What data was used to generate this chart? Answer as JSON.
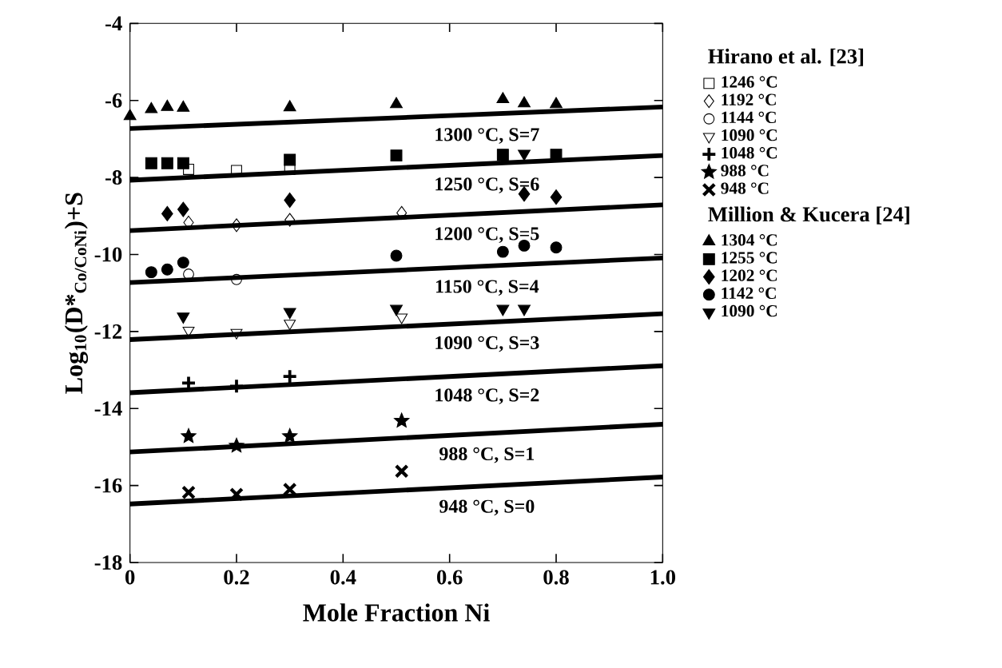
{
  "chart_data": {
    "type": "scatter",
    "xlabel": "Mole Fraction Ni",
    "ylabel": "Log$_{10}$(D*$_{Co/CoNi}$)+S",
    "xlim": [
      0,
      1
    ],
    "ylim": [
      -18,
      -4
    ],
    "xticks": [
      0,
      0.2,
      0.4,
      0.6,
      0.8,
      {
        "value": 1,
        "label": "1.0"
      }
    ],
    "yticks": [
      -18,
      -16,
      -14,
      -12,
      -10,
      -8,
      -6,
      -4
    ],
    "legend": "right",
    "annotations": [
      "Hirano et al. [23]",
      "Million & Kucera [24]",
      "1300 °C, S=7",
      "1250 °C, S=6",
      "1200 °C, S=5",
      "1150 °C, S=4",
      "1090 °C, S=3",
      "1048 °C, S=2",
      "988 °C, S=1",
      "948 °C, S=0"
    ],
    "series": [
      {
        "type": "line",
        "color": "#000000",
        "marker": "none",
        "x": [
          0,
          1
        ],
        "values": [
          -6.73,
          -6.17
        ]
      },
      {
        "type": "line",
        "color": "#000000",
        "marker": "none",
        "x": [
          0,
          1
        ],
        "values": [
          -8.07,
          -7.43
        ]
      },
      {
        "type": "line",
        "color": "#000000",
        "marker": "none",
        "x": [
          0,
          1
        ],
        "values": [
          -9.38,
          -8.71
        ]
      },
      {
        "type": "line",
        "color": "#000000",
        "marker": "none",
        "x": [
          0,
          1
        ],
        "values": [
          -10.73,
          -10.09
        ]
      },
      {
        "type": "line",
        "color": "#000000",
        "marker": "none",
        "x": [
          0,
          1
        ],
        "values": [
          -12.21,
          -11.54
        ]
      },
      {
        "type": "line",
        "color": "#000000",
        "marker": "none",
        "x": [
          0,
          1
        ],
        "values": [
          -13.59,
          -12.89
        ]
      },
      {
        "type": "line",
        "color": "#000000",
        "marker": "none",
        "x": [
          0,
          1
        ],
        "values": [
          -15.13,
          -14.41
        ]
      },
      {
        "type": "line",
        "color": "#000000",
        "marker": "none",
        "x": [
          0,
          1
        ],
        "values": [
          -16.48,
          -15.78
        ]
      },
      {
        "name": "1246 °C",
        "color": "#000000",
        "marker": "square-open",
        "x": [
          0.11,
          0.2,
          0.3
        ],
        "values": [
          -7.79,
          -7.82,
          -7.79
        ]
      },
      {
        "name": "1192 °C",
        "color": "#000000",
        "marker": "diamond-open",
        "x": [
          0.11,
          0.2,
          0.3,
          0.51
        ],
        "values": [
          -9.17,
          -9.24,
          -9.1,
          -8.92
        ]
      },
      {
        "name": "1144 °C",
        "color": "#000000",
        "marker": "circle-open",
        "x": [
          0.11,
          0.2
        ],
        "values": [
          -10.51,
          -10.65
        ]
      },
      {
        "name": "1090 °C",
        "color": "#000000",
        "marker": "triangle-down-open",
        "x": [
          0.11,
          0.2,
          0.3,
          0.51
        ],
        "values": [
          -11.97,
          -12.03,
          -11.79,
          -11.63
        ]
      },
      {
        "name": "1048 °C",
        "color": "#000000",
        "marker": "plus",
        "x": [
          0.11,
          0.2,
          0.3
        ],
        "values": [
          -13.34,
          -13.42,
          -13.17
        ]
      },
      {
        "name": "988 °C",
        "color": "#000000",
        "marker": "star",
        "x": [
          0.11,
          0.2,
          0.3,
          0.51
        ],
        "values": [
          -14.72,
          -14.97,
          -14.72,
          -14.32
        ]
      },
      {
        "name": "948 °C",
        "color": "#000000",
        "marker": "cross",
        "x": [
          0.11,
          0.2,
          0.3,
          0.51
        ],
        "values": [
          -16.18,
          -16.23,
          -16.1,
          -15.63
        ]
      },
      {
        "name": "1304 °C",
        "color": "#000000",
        "marker": "triangle",
        "x": [
          0.0,
          0.04,
          0.07,
          0.1,
          0.3,
          0.5,
          0.7,
          0.74,
          0.8
        ],
        "values": [
          -6.41,
          -6.23,
          -6.17,
          -6.19,
          -6.18,
          -6.1,
          -5.97,
          -6.08,
          -6.1
        ]
      },
      {
        "name": "1255 °C",
        "color": "#000000",
        "marker": "square",
        "x": [
          0.04,
          0.07,
          0.1,
          0.3,
          0.5,
          0.7,
          0.8
        ],
        "values": [
          -7.63,
          -7.63,
          -7.63,
          -7.54,
          -7.43,
          -7.41,
          -7.41
        ]
      },
      {
        "name": "1202 °C",
        "color": "#000000",
        "marker": "diamond",
        "x": [
          0.07,
          0.1,
          0.3,
          0.74,
          0.8
        ],
        "values": [
          -8.94,
          -8.83,
          -8.59,
          -8.43,
          -8.51
        ]
      },
      {
        "name": "1142 °C",
        "color": "#000000",
        "marker": "circle",
        "x": [
          0.04,
          0.07,
          0.1,
          0.5,
          0.7,
          0.74,
          0.8
        ],
        "values": [
          -10.46,
          -10.39,
          -10.21,
          -10.03,
          -9.93,
          -9.77,
          -9.82
        ]
      },
      {
        "name": "1090 °C",
        "color": "#000000",
        "marker": "triangle-down",
        "x": [
          0.1,
          0.3,
          0.5,
          0.7,
          0.74,
          0.74
        ],
        "values": [
          -11.61,
          -11.49,
          -11.41,
          -11.41,
          -11.41,
          -7.38
        ]
      }
    ]
  }
}
